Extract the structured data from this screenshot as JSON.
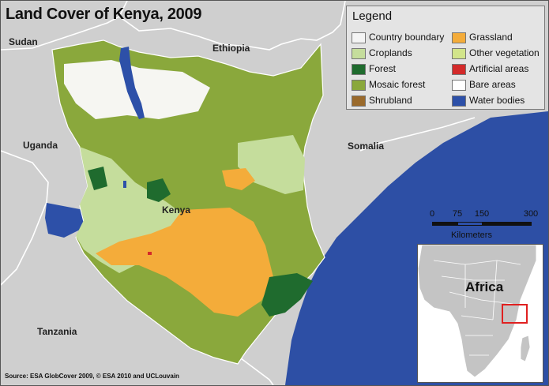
{
  "title": "Land Cover of Kenya, 2009",
  "labels": {
    "sudan": "Sudan",
    "ethiopia": "Ethiopia",
    "uganda": "Uganda",
    "somalia": "Somalia",
    "kenya": "Kenya",
    "tanzania": "Tanzania",
    "africa": "Africa"
  },
  "legend": {
    "title": "Legend",
    "items": [
      {
        "label": "Country boundary",
        "color": "#f4f4f4"
      },
      {
        "label": "Croplands",
        "color": "#c5dd9c"
      },
      {
        "label": "Forest",
        "color": "#1f6b2e"
      },
      {
        "label": "Mosaic forest",
        "color": "#8aa83c"
      },
      {
        "label": "Shrubland",
        "color": "#9a6a2c"
      },
      {
        "label": "Grassland",
        "color": "#f4ac3a"
      },
      {
        "label": "Other vegetation",
        "color": "#d2e58a"
      },
      {
        "label": "Artificial areas",
        "color": "#d32a2a"
      },
      {
        "label": "Bare areas",
        "color": "#ffffff"
      },
      {
        "label": "Water bodies",
        "color": "#2d50a8"
      }
    ]
  },
  "scale": {
    "ticks": [
      "0",
      "75",
      "150",
      "300"
    ],
    "unit": "Kilometers"
  },
  "source": "Source: ESA GlobCover 2009, © ESA 2010 and UCLouvain",
  "colors": {
    "ocean": "#2d4fa5",
    "land": "#cfcfcf",
    "inset_land": "#c4c4c4",
    "inset_ocean": "#ffffff",
    "highlight": "#e02020"
  }
}
